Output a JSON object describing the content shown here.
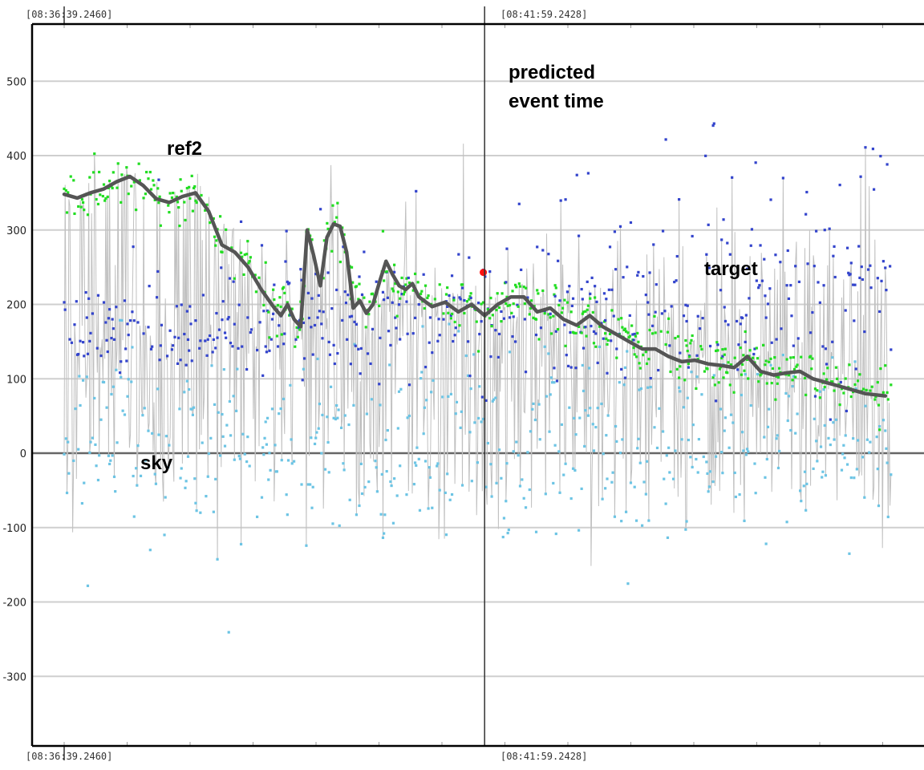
{
  "chart_data": {
    "type": "line",
    "title": "",
    "xlabel": "",
    "ylabel": "",
    "ylim": [
      -380,
      580
    ],
    "y_ticks": [
      500,
      400,
      300,
      200,
      100,
      0,
      -100,
      -200,
      -300
    ],
    "grid": true,
    "x_time_labels": {
      "start_top": "[08:36:39.2460]",
      "mid_top": "[08:41:59.2428]",
      "start_bottom": "[08:36:39.2460]",
      "mid_bottom": "[08:41:59.2428]"
    },
    "x_range_seconds": [
      0,
      630
    ],
    "predicted_event_x": 320,
    "annotations": {
      "predicted": "predicted\nevent time",
      "ref2": "ref2",
      "target": "target",
      "sky": "sky"
    },
    "colors": {
      "ref2": "#22dd22",
      "target": "#3344cc",
      "sky": "#6cc4e4",
      "trace": "#c0c0c0",
      "smooth": "#555555",
      "event_point": "#ff1111",
      "grid": "#cfcfcf",
      "zero_line": "#666666"
    },
    "series": [
      {
        "name": "smoothed",
        "x": [
          0,
          10,
          20,
          30,
          40,
          50,
          60,
          70,
          80,
          90,
          100,
          110,
          120,
          130,
          140,
          150,
          160,
          165,
          170,
          175,
          180,
          185,
          190,
          195,
          200,
          205,
          210,
          215,
          220,
          225,
          230,
          235,
          240,
          245,
          250,
          255,
          260,
          265,
          270,
          280,
          290,
          300,
          310,
          320,
          330,
          340,
          350,
          360,
          370,
          380,
          390,
          400,
          410,
          420,
          430,
          440,
          450,
          460,
          470,
          480,
          490,
          500,
          510,
          520,
          530,
          540,
          550,
          560,
          570,
          580,
          590,
          600,
          610,
          620,
          625
        ],
        "y": [
          348,
          343,
          350,
          355,
          365,
          372,
          360,
          342,
          337,
          345,
          350,
          325,
          280,
          270,
          250,
          220,
          195,
          185,
          200,
          180,
          170,
          300,
          265,
          225,
          290,
          308,
          305,
          270,
          195,
          205,
          188,
          200,
          230,
          258,
          240,
          225,
          220,
          228,
          210,
          197,
          203,
          190,
          200,
          185,
          200,
          210,
          210,
          190,
          195,
          180,
          172,
          185,
          170,
          160,
          150,
          140,
          140,
          130,
          123,
          125,
          120,
          118,
          115,
          130,
          110,
          105,
          108,
          110,
          100,
          95,
          90,
          85,
          80,
          78,
          77
        ]
      },
      {
        "name": "event_point",
        "x": [
          319
        ],
        "y": [
          243
        ]
      }
    ]
  }
}
